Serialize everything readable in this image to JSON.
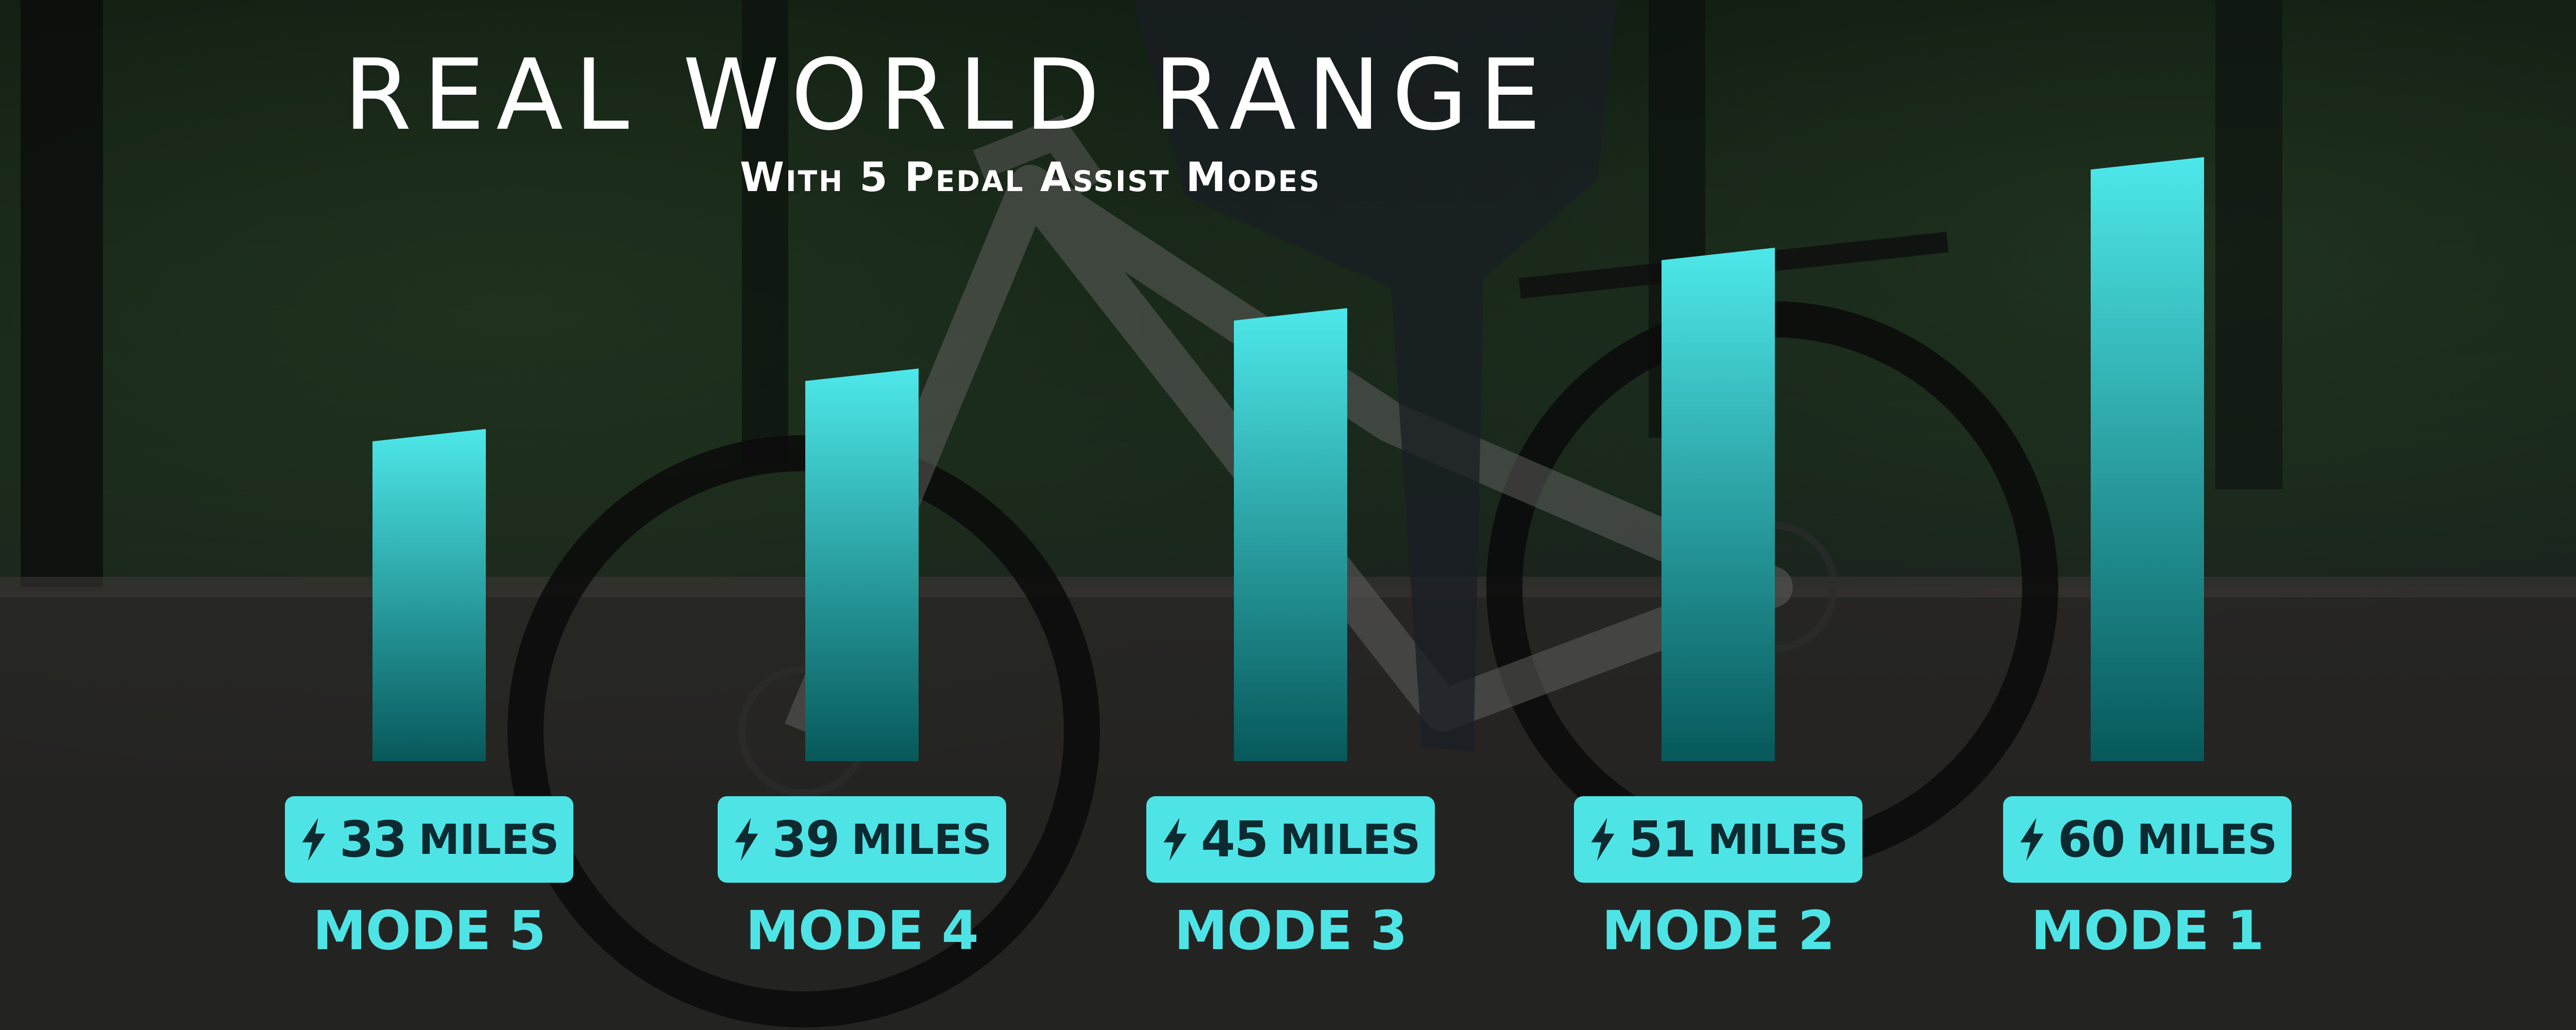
{
  "chart_data": {
    "type": "bar",
    "title": "REAL WORLD RANGE",
    "subtitle": "With 5 Pedal Assist Modes",
    "categories": [
      "MODE 5",
      "MODE 4",
      "MODE 3",
      "MODE 2",
      "MODE 1"
    ],
    "values": [
      33,
      39,
      45,
      51,
      60
    ],
    "unit": "MILES",
    "value_labels": [
      "33",
      "39",
      "45",
      "51",
      "60"
    ],
    "bar_color_top": "#4ee8ea",
    "bar_color_bottom": "#07585a",
    "label_color": "#4ee4e6",
    "pill_text_color": "#0c2a30"
  },
  "icons": {
    "value_pill_icon": "lightning-bolt-icon"
  }
}
